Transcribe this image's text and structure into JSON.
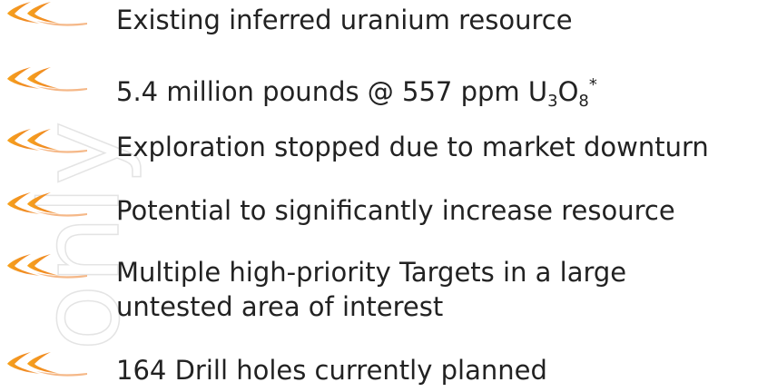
{
  "watermark": "only",
  "items": [
    {
      "lines": [
        [
          {
            "text": "Existing inferred uranium resource"
          }
        ]
      ]
    },
    {
      "lines": [
        [
          {
            "text": "5.4 million pounds @ 557 ppm U"
          },
          {
            "text": "3",
            "position": "sub"
          },
          {
            "text": "O"
          },
          {
            "text": "8",
            "position": "sub"
          },
          {
            "text": "*",
            "position": "sup"
          }
        ]
      ]
    },
    {
      "lines": [
        [
          {
            "text": "Exploration stopped due to market downturn"
          }
        ]
      ]
    },
    {
      "lines": [
        [
          {
            "text": "Potential to significantly increase resource"
          }
        ]
      ]
    },
    {
      "lines": [
        [
          {
            "text": "Multiple high-priority Targets in a large"
          }
        ],
        [
          {
            "text": "untested area of interest"
          }
        ]
      ]
    },
    {
      "lines": [
        [
          {
            "text": "164 Drill holes currently planned"
          }
        ]
      ]
    }
  ]
}
